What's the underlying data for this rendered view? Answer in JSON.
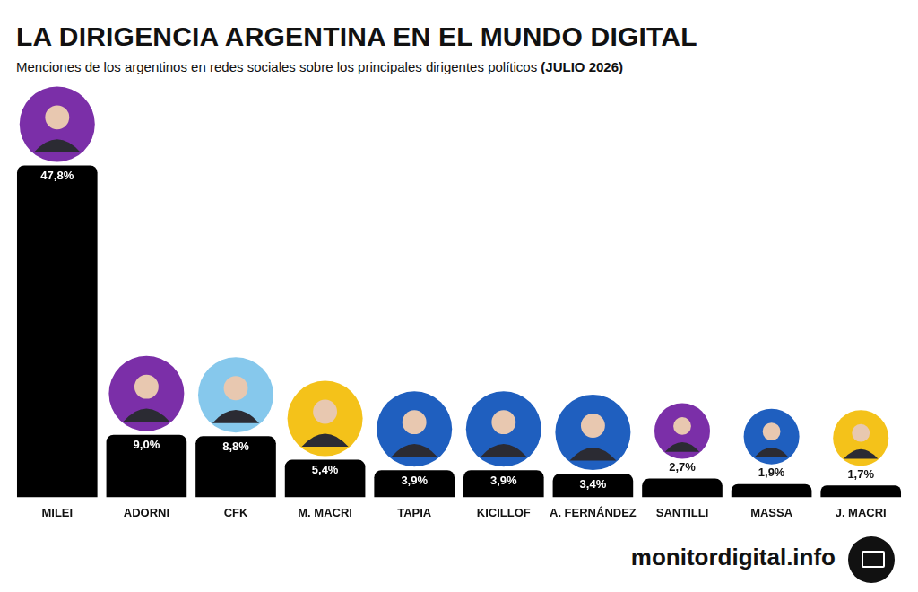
{
  "chart_data": {
    "type": "bar",
    "title": "LA DIRIGENCIA ARGENTINA EN EL MUNDO DIGITAL",
    "subtitle": "Menciones de los argentinos en redes sociales sobre los principales dirigentes políticos",
    "subtitle_emphasis": "(JULIO 2026)",
    "source": "monitordigital.info",
    "categories": [
      "MILEI",
      "ADORNI",
      "CFK",
      "M. MACRI",
      "TAPIA",
      "KICILLOF",
      "A. FERNÁNDEZ",
      "SANTILLI",
      "MASSA",
      "J. MACRI"
    ],
    "values": [
      47.8,
      9.0,
      8.8,
      5.4,
      3.9,
      3.9,
      3.4,
      2.7,
      1.9,
      1.7
    ],
    "value_labels": [
      "47,8%",
      "9,0%",
      "8,8%",
      "5,4%",
      "3,9%",
      "3,9%",
      "3,4%",
      "2,7%",
      "1,9%",
      "1,7%"
    ],
    "color": "#000000",
    "ylim": [
      0,
      60
    ],
    "grid": false,
    "tick_labels": "x",
    "data_labels": true
  }
}
